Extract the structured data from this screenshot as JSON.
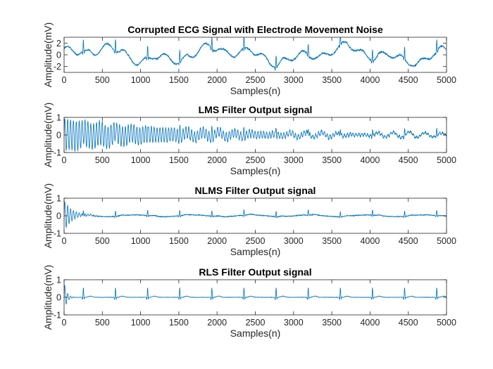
{
  "chart_data": [
    {
      "type": "line",
      "title": "Corrupted ECG Signal with Electrode Movement Noise",
      "xlabel": "Samples(n)",
      "ylabel": "Amplitude(mV)",
      "xlim": [
        0,
        5000
      ],
      "ylim": [
        -3,
        3
      ],
      "xticks": [
        0,
        500,
        1000,
        1500,
        2000,
        2500,
        3000,
        3500,
        4000,
        4500,
        5000
      ],
      "yticks": [
        -2,
        0,
        2
      ],
      "grid": false,
      "line_color": "#0072BD",
      "signal": {
        "kind": "noisy_ecg",
        "baseline_wander_mV": 1.6,
        "noise_mV": 0.25,
        "beat_period_samples": 420,
        "peak_mV": 2.0,
        "samples": 5000
      }
    },
    {
      "type": "line",
      "title": "LMS Filter Output signal",
      "xlabel": "Samples(n)",
      "ylabel": "Amplitude(mV)",
      "xlim": [
        0,
        5000
      ],
      "ylim": [
        -1,
        1
      ],
      "xticks": [
        0,
        500,
        1000,
        1500,
        2000,
        2500,
        3000,
        3500,
        4000,
        4500,
        5000
      ],
      "yticks": [
        -1,
        0,
        1
      ],
      "grid": false,
      "line_color": "#0072BD",
      "signal": {
        "kind": "lms",
        "noise_mV": 0.09,
        "beat_period_samples": 420,
        "peak_mV": 0.35,
        "samples": 5000
      }
    },
    {
      "type": "line",
      "title": "NLMS Filter Output signal",
      "xlabel": "Samples(n)",
      "ylabel": "Amplitude(mV)",
      "xlim": [
        0,
        5000
      ],
      "ylim": [
        -1,
        1
      ],
      "xticks": [
        0,
        500,
        1000,
        1500,
        2000,
        2500,
        3000,
        3500,
        4000,
        4500,
        5000
      ],
      "yticks": [
        -1,
        0,
        1
      ],
      "grid": false,
      "line_color": "#0072BD",
      "signal": {
        "kind": "nlms",
        "noise_mV": 0.04,
        "beat_period_samples": 420,
        "peak_mV": 0.3,
        "samples": 5000
      }
    },
    {
      "type": "line",
      "title": "RLS Filter Output signal",
      "xlabel": "Samples(n)",
      "ylabel": "Amplitude(mV)",
      "xlim": [
        0,
        5000
      ],
      "ylim": [
        -1,
        1
      ],
      "xticks": [
        0,
        500,
        1000,
        1500,
        2000,
        2500,
        3000,
        3500,
        4000,
        4500,
        5000
      ],
      "yticks": [
        -1,
        0,
        1
      ],
      "grid": false,
      "line_color": "#0072BD",
      "signal": {
        "kind": "rls",
        "noise_mV": 0.02,
        "beat_period_samples": 420,
        "peak_mV": 0.55,
        "samples": 5000
      }
    }
  ]
}
